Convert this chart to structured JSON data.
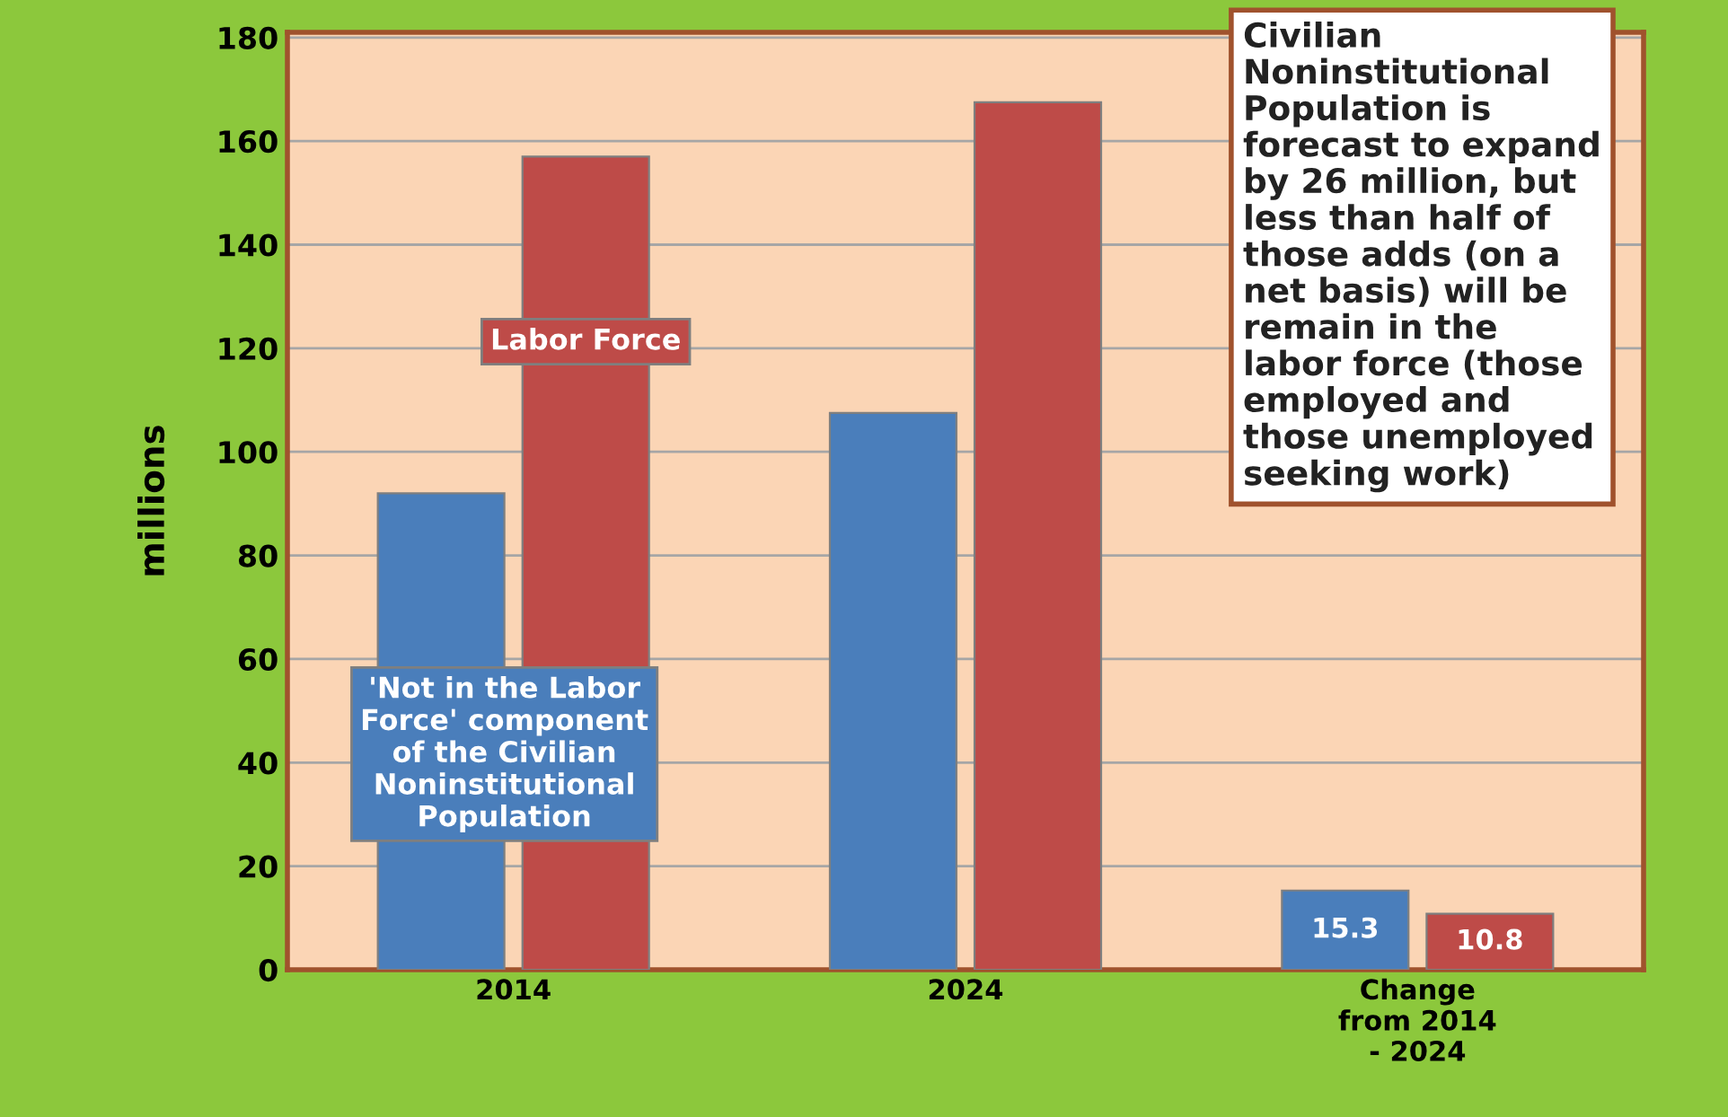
{
  "chart_data": {
    "type": "bar",
    "ylabel": "millions",
    "categories": [
      "2014",
      "2024",
      "Change\nfrom 2014\n- 2024"
    ],
    "series": [
      {
        "name": "'Not in the Labor\nForce' component\nof the Civilian\nNoninstitutional\nPopulation",
        "color": "#4a7ebb",
        "values": [
          92,
          107.5,
          15.3
        ],
        "value_labels": [
          null,
          null,
          "15.3"
        ]
      },
      {
        "name": "Labor Force",
        "color": "#be4b48",
        "values": [
          157,
          167.5,
          10.8
        ],
        "value_labels": [
          null,
          null,
          "10.8"
        ]
      }
    ],
    "ylim": [
      0,
      181
    ],
    "yticks": [
      0,
      20,
      40,
      60,
      80,
      100,
      120,
      140,
      160,
      180
    ],
    "grid": "y",
    "legend": false,
    "annotations": [
      "Civilian\nNoninstitutional\nPopulation is\nforecast to expand\nby 26 million, but\nless than half of\nthose adds (on a\nnet basis) will be\nremain in the\nlabor force (those\nemployed and\nthose unemployed\nseeking work)"
    ]
  }
}
